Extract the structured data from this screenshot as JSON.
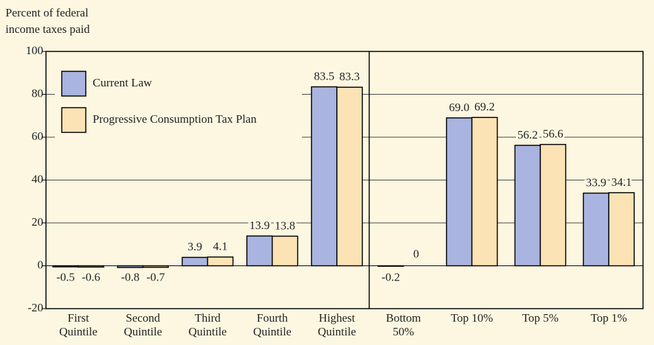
{
  "chart_data": {
    "type": "bar",
    "ylabel": [
      "Percent of federal",
      "income taxes paid"
    ],
    "categories": [
      [
        "First",
        "Quintile"
      ],
      [
        "Second",
        "Quintile"
      ],
      [
        "Third",
        "Quintile"
      ],
      [
        "Fourth",
        "Quintile"
      ],
      [
        "Highest",
        "Quintile"
      ],
      [
        "Bottom",
        "50%"
      ],
      [
        "Top 10%"
      ],
      [
        "Top 5%"
      ],
      [
        "Top 1%"
      ]
    ],
    "series": [
      {
        "name": "Current Law",
        "color": "#a9b4e0",
        "values": [
          -0.5,
          -0.8,
          3.9,
          13.9,
          83.5,
          -0.2,
          69.0,
          56.2,
          33.9
        ],
        "value_labels": [
          "-0.5",
          "-0.8",
          "3.9",
          "13.9",
          "83.5",
          "-0.2",
          "69.0",
          "56.2",
          "33.9"
        ]
      },
      {
        "name": "Progressive Consumption Tax Plan",
        "color": "#fbe3b5",
        "values": [
          -0.6,
          -0.7,
          4.1,
          13.8,
          83.3,
          0,
          69.2,
          56.6,
          34.1
        ]
      }
    ],
    "ylim": [
      -20,
      100
    ],
    "yticks": [
      -20,
      0,
      20,
      40,
      60,
      80,
      100
    ],
    "grid": true
  }
}
